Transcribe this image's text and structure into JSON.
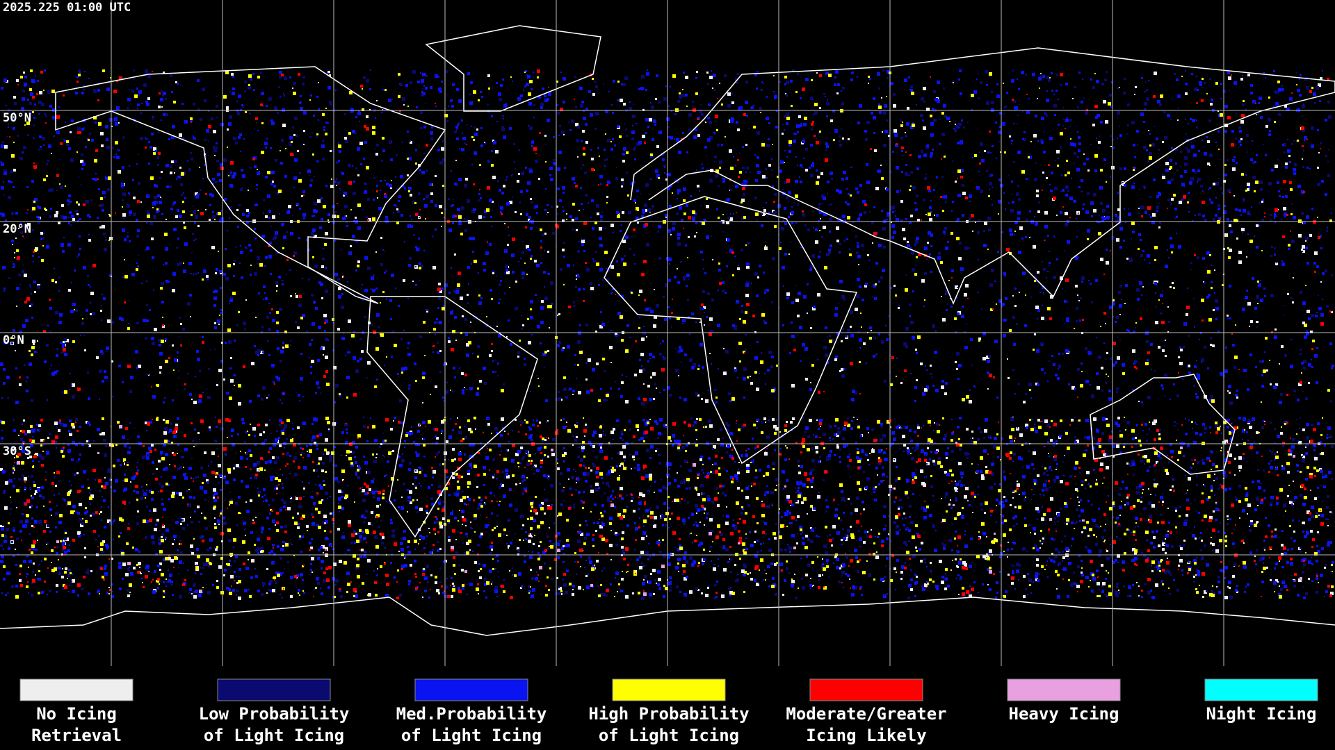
{
  "header": {
    "timestamp": "2025.225 01:00 UTC"
  },
  "latitude_labels": [
    "50°N",
    "20°N",
    "0°N",
    "30°S"
  ],
  "legend": [
    {
      "label_lines": [
        "No Icing",
        "Retrieval"
      ],
      "color": "#eeeeee"
    },
    {
      "label_lines": [
        "Low Probability",
        "of Light Icing"
      ],
      "color": "#0a0a70"
    },
    {
      "label_lines": [
        "Med.Probability",
        "of Light Icing"
      ],
      "color": "#0a14f0"
    },
    {
      "label_lines": [
        "High Probability",
        "of Light Icing"
      ],
      "color": "#ffff00"
    },
    {
      "label_lines": [
        "Moderate/Greater",
        "Icing Likely"
      ],
      "color": "#ff0000"
    },
    {
      "label_lines": [
        "Heavy Icing"
      ],
      "color": "#e8a0e0"
    },
    {
      "label_lines": [
        "Night Icing"
      ],
      "color": "#00ffff"
    }
  ]
}
